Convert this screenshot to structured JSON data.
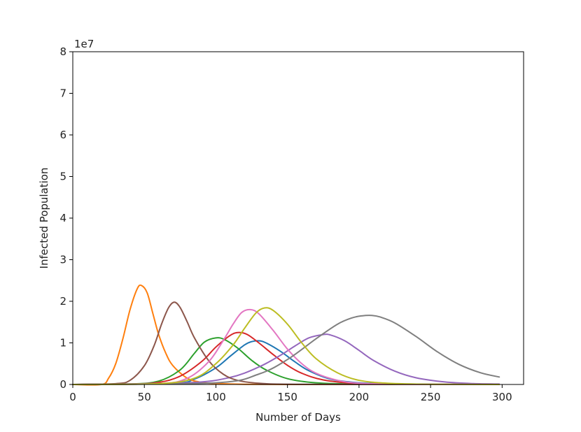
{
  "chart_data": {
    "type": "line",
    "xlabel": "Number of Days",
    "ylabel": "Infected Population",
    "y_offset_text": "1e7",
    "y_scale_factor": 10000000,
    "xlim": [
      0,
      315
    ],
    "ylim": [
      0,
      8
    ],
    "xticks": [
      0,
      50,
      100,
      150,
      200,
      250,
      300
    ],
    "yticks": [
      0,
      1,
      2,
      3,
      4,
      5,
      6,
      7,
      8
    ],
    "grid": false,
    "legend": "none",
    "series": [
      {
        "color": "#1f77b4",
        "x": [
          0,
          70,
          85,
          100,
          110,
          120,
          125,
          130,
          135,
          145,
          155,
          165,
          180,
          200,
          230,
          260,
          298
        ],
        "y": [
          0,
          0.03,
          0.13,
          0.4,
          0.68,
          0.95,
          1.03,
          1.05,
          1.0,
          0.8,
          0.55,
          0.33,
          0.13,
          0.04,
          0.01,
          0.003,
          0
        ]
      },
      {
        "color": "#ff7f0e",
        "x": [
          0,
          20,
          25,
          30,
          35,
          40,
          45,
          48,
          52,
          56,
          60,
          65,
          70,
          80,
          90,
          100,
          120,
          150,
          200,
          298
        ],
        "y": [
          0,
          0,
          0.15,
          0.5,
          1.1,
          1.8,
          2.3,
          2.38,
          2.2,
          1.7,
          1.2,
          0.75,
          0.45,
          0.15,
          0.05,
          0.02,
          0.005,
          0.001,
          0,
          0
        ]
      },
      {
        "color": "#2ca02c",
        "x": [
          0,
          40,
          60,
          75,
          85,
          92,
          100,
          106,
          115,
          125,
          135,
          150,
          170,
          200,
          250,
          298
        ],
        "y": [
          0,
          0.01,
          0.08,
          0.35,
          0.75,
          1.02,
          1.12,
          1.08,
          0.88,
          0.58,
          0.35,
          0.14,
          0.04,
          0.008,
          0.001,
          0
        ]
      },
      {
        "color": "#d62728",
        "x": [
          0,
          40,
          60,
          75,
          90,
          100,
          110,
          116,
          122,
          130,
          140,
          150,
          160,
          175,
          200,
          230,
          298
        ],
        "y": [
          0,
          0.01,
          0.05,
          0.2,
          0.55,
          0.9,
          1.18,
          1.25,
          1.2,
          1.0,
          0.72,
          0.46,
          0.27,
          0.11,
          0.02,
          0.004,
          0
        ]
      },
      {
        "color": "#9467bd",
        "x": [
          0,
          80,
          110,
          130,
          145,
          155,
          165,
          175,
          180,
          190,
          200,
          210,
          225,
          240,
          260,
          280,
          298
        ],
        "y": [
          0,
          0.04,
          0.17,
          0.42,
          0.7,
          0.92,
          1.12,
          1.2,
          1.19,
          1.05,
          0.82,
          0.58,
          0.32,
          0.16,
          0.06,
          0.02,
          0.01
        ]
      },
      {
        "color": "#8c564b",
        "x": [
          0,
          30,
          40,
          50,
          57,
          62,
          67,
          71,
          75,
          80,
          85,
          95,
          105,
          115,
          130,
          160,
          298
        ],
        "y": [
          0,
          0.02,
          0.1,
          0.45,
          0.95,
          1.45,
          1.85,
          1.98,
          1.85,
          1.5,
          1.12,
          0.57,
          0.25,
          0.1,
          0.03,
          0.004,
          0
        ]
      },
      {
        "color": "#e377c2",
        "x": [
          0,
          60,
          80,
          95,
          105,
          112,
          118,
          124,
          130,
          140,
          150,
          160,
          170,
          185,
          200,
          230,
          298
        ],
        "y": [
          0,
          0.02,
          0.15,
          0.55,
          1.05,
          1.45,
          1.73,
          1.8,
          1.7,
          1.3,
          0.85,
          0.5,
          0.27,
          0.1,
          0.03,
          0.005,
          0
        ]
      },
      {
        "color": "#7f7f7f",
        "x": [
          0,
          100,
          130,
          150,
          170,
          185,
          195,
          202,
          209,
          215,
          225,
          240,
          255,
          270,
          285,
          298
        ],
        "y": [
          0,
          0.04,
          0.25,
          0.6,
          1.1,
          1.45,
          1.6,
          1.65,
          1.66,
          1.62,
          1.48,
          1.15,
          0.78,
          0.48,
          0.28,
          0.18
        ]
      },
      {
        "color": "#bcbd22",
        "x": [
          0,
          60,
          85,
          100,
          112,
          120,
          128,
          134,
          140,
          150,
          160,
          170,
          185,
          200,
          220,
          250,
          298
        ],
        "y": [
          0,
          0.02,
          0.15,
          0.5,
          0.95,
          1.35,
          1.72,
          1.84,
          1.78,
          1.45,
          1.0,
          0.62,
          0.28,
          0.1,
          0.03,
          0.005,
          0
        ]
      }
    ]
  }
}
